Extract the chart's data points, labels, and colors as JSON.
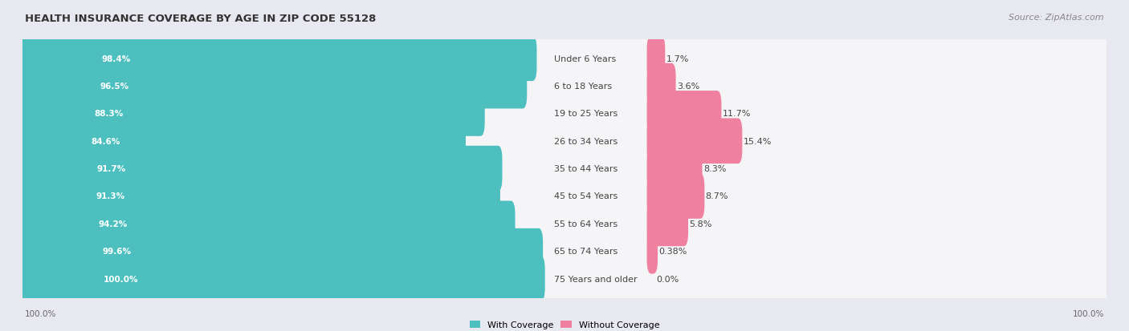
{
  "title": "HEALTH INSURANCE COVERAGE BY AGE IN ZIP CODE 55128",
  "source": "Source: ZipAtlas.com",
  "categories": [
    "Under 6 Years",
    "6 to 18 Years",
    "19 to 25 Years",
    "26 to 34 Years",
    "35 to 44 Years",
    "45 to 54 Years",
    "55 to 64 Years",
    "65 to 74 Years",
    "75 Years and older"
  ],
  "with_coverage": [
    98.4,
    96.5,
    88.3,
    84.6,
    91.7,
    91.3,
    94.2,
    99.6,
    100.0
  ],
  "without_coverage": [
    1.7,
    3.6,
    11.7,
    15.4,
    8.3,
    8.7,
    5.8,
    0.38,
    0.0
  ],
  "with_coverage_labels": [
    "98.4%",
    "96.5%",
    "88.3%",
    "84.6%",
    "91.7%",
    "91.3%",
    "94.2%",
    "99.6%",
    "100.0%"
  ],
  "without_coverage_labels": [
    "1.7%",
    "3.6%",
    "11.7%",
    "15.4%",
    "8.3%",
    "8.7%",
    "5.8%",
    "0.38%",
    "0.0%"
  ],
  "color_with": "#4DBFBF",
  "color_without": "#F080A0",
  "color_without_light": "#F8B8CC",
  "background_color": "#e8e8f0",
  "bar_background": "#f5f5f8",
  "title_fontsize": 9.5,
  "label_fontsize": 8,
  "source_fontsize": 8,
  "legend_with": "With Coverage",
  "legend_without": "Without Coverage"
}
